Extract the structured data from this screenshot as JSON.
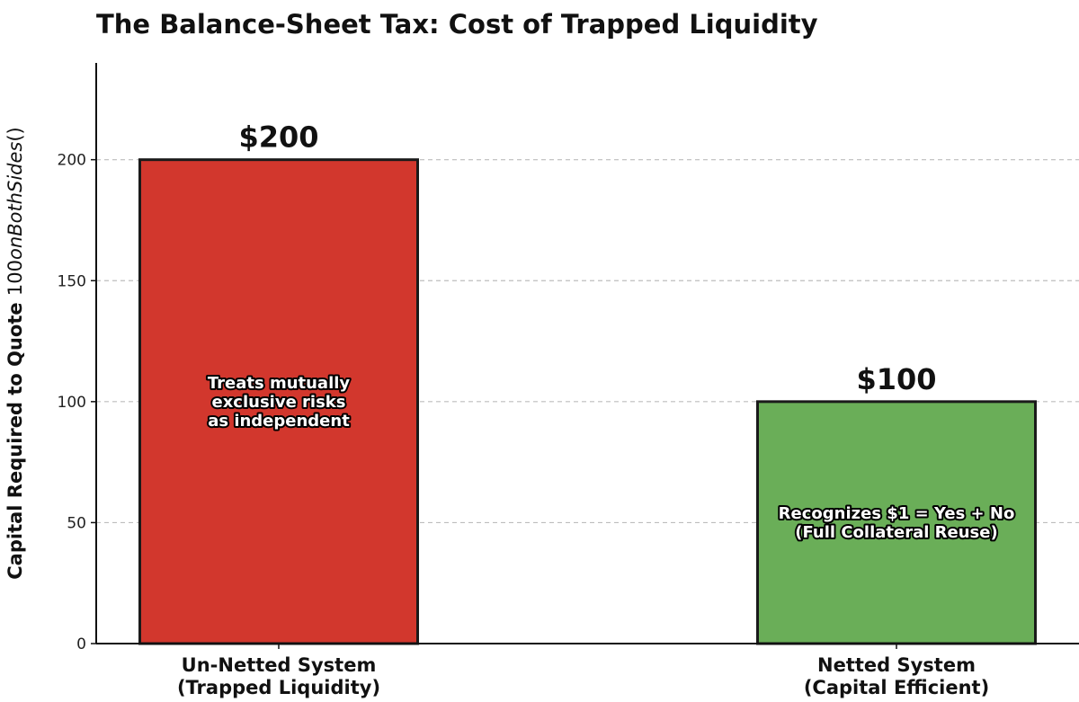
{
  "chart_data": {
    "type": "bar",
    "title": "The Balance-Sheet Tax: Cost of Trapped Liquidity",
    "ylabel": {
      "text": "Capital Required to Quote ",
      "math_number": "100",
      "math_italic": "onBothSides",
      "math_parens": "()"
    },
    "xlabel": "",
    "ylim": [
      0,
      240
    ],
    "yticks": [
      0,
      50,
      100,
      150,
      200
    ],
    "grid": "horizontal dashed",
    "categories": [
      [
        "Un-Netted System",
        "(Trapped Liquidity)"
      ],
      [
        "Netted System",
        "(Capital Efficient)"
      ]
    ],
    "values": [
      200,
      100
    ],
    "value_labels": [
      "$200",
      "$100"
    ],
    "annotations": [
      [
        "Treats mutually",
        "exclusive risks",
        "as independent"
      ],
      [
        "Recognizes $1 = Yes + No",
        "(Full Collateral Reuse)"
      ]
    ],
    "annotation_y": [
      100,
      50
    ],
    "colors": [
      "#d2372d",
      "#6aae58"
    ],
    "edge_color": "#1a1a1a"
  }
}
